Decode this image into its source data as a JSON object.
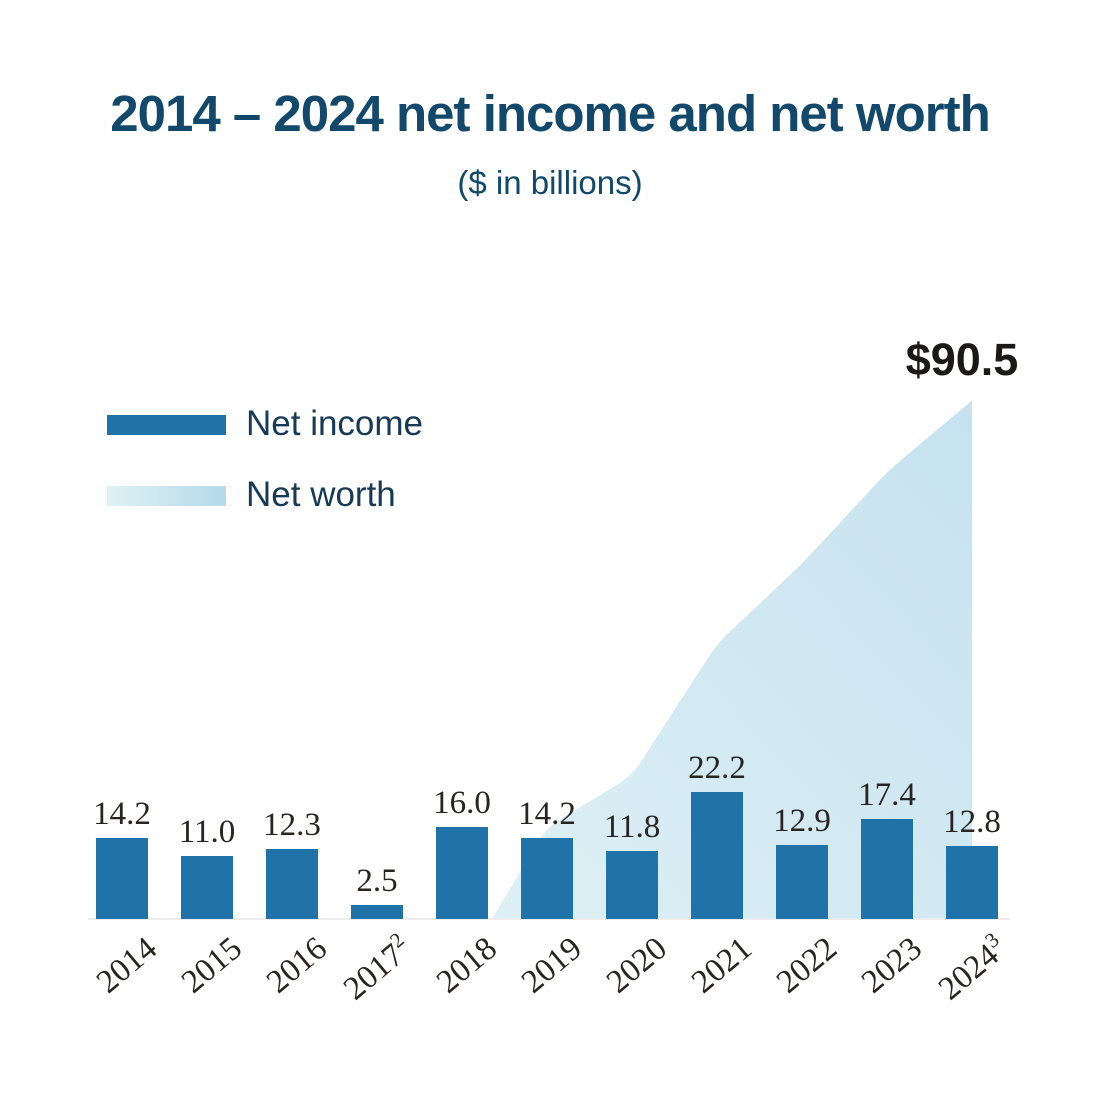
{
  "colors": {
    "title": "#11486b",
    "legend_text": "#163a56",
    "value_labels": "#272421",
    "annotation": "#1b1918",
    "bar": "#1f73a8",
    "baseline": "#ececec"
  },
  "chart_data": {
    "type": "bar+area",
    "title": "2014 – 2024 net income and net worth",
    "subtitle": "($ in billions)",
    "categories": [
      "2014",
      "2015",
      "2016",
      "2017",
      "2018",
      "2019",
      "2020",
      "2021",
      "2022",
      "2023",
      "2024"
    ],
    "category_superscripts": {
      "2017": "2",
      "2024": "3"
    },
    "series": [
      {
        "name": "Net income",
        "type": "bar",
        "color": "#1f73a8",
        "values": [
          14.2,
          11.0,
          12.3,
          2.5,
          16.0,
          14.2,
          11.8,
          22.2,
          12.9,
          17.4,
          12.8
        ],
        "labels": [
          "14.2",
          "11.0",
          "12.3",
          "2.5",
          "16.0",
          "14.2",
          "11.8",
          "22.2",
          "12.9",
          "17.4",
          "12.8"
        ]
      },
      {
        "name": "Net worth",
        "type": "area",
        "area_gradient": [
          "#def0f5",
          "#c6e2f0"
        ],
        "legend_gradient": [
          "#dff2f5",
          "#b5d9e9"
        ],
        "values": [
          null,
          null,
          null,
          null,
          0,
          16,
          25,
          48,
          62,
          78,
          90.5
        ],
        "values_estimated": true,
        "labeled_value": 90.5
      }
    ],
    "annotations": [
      {
        "text": "$90.5",
        "series": "Net worth",
        "category": "2024",
        "position": "above-area-peak"
      }
    ],
    "ylim": [
      0,
      95
    ],
    "y_axis_shown": false,
    "gridlines": false,
    "legend_position": "upper-left"
  }
}
